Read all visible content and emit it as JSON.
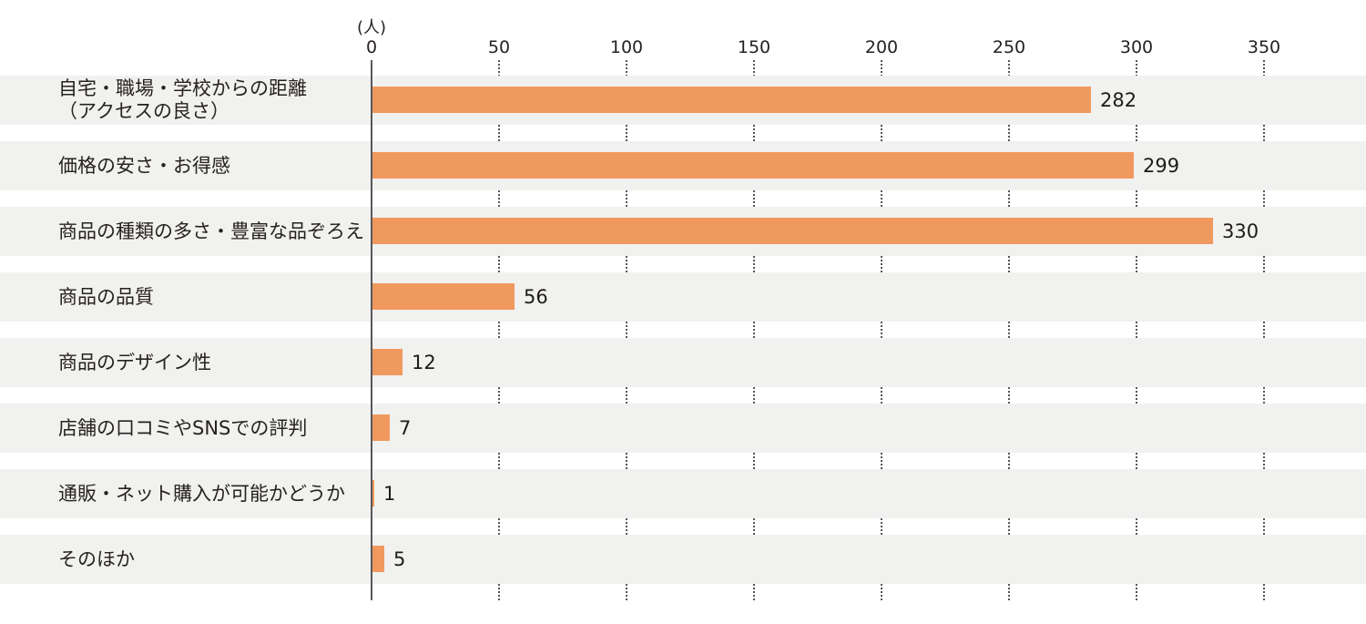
{
  "chart_data": {
    "type": "bar",
    "orientation": "horizontal",
    "title": "",
    "unit_label": "(人)",
    "categories": [
      "自宅・職場・学校からの距離（アクセスの良さ）",
      "価格の安さ・お得感",
      "商品の種類の多さ・豊富な品ぞろえ",
      "商品の品質",
      "商品のデザイン性",
      "店舗の口コミやSNSでの評判",
      "通販・ネット購入が可能かどうか",
      "そのほか"
    ],
    "category_label_lines": [
      [
        "自宅・職場・学校からの距離",
        "（アクセスの良さ）"
      ],
      [
        "価格の安さ・お得感"
      ],
      [
        "商品の種類の多さ・豊富な品ぞろえ"
      ],
      [
        "商品の品質"
      ],
      [
        "商品のデザイン性"
      ],
      [
        "店舗の口コミやSNSでの評判"
      ],
      [
        "通販・ネット購入が可能かどうか"
      ],
      [
        "そのほか"
      ]
    ],
    "values": [
      282,
      299,
      330,
      56,
      12,
      7,
      1,
      5
    ],
    "value_labels": [
      "282",
      "299",
      "330",
      "56",
      "12",
      "7",
      "1",
      "5"
    ],
    "x_ticks": [
      0,
      50,
      100,
      150,
      200,
      250,
      300,
      350
    ],
    "xlim": [
      0,
      390
    ],
    "ylabel": "",
    "xlabel": "",
    "legend": "none",
    "grid": "dotted vertical tick marks in the white gaps between row bands",
    "colors": {
      "bar": "#F0995E",
      "row_band": "#F1F1F0",
      "axis_line": "#58585A",
      "tick_dots": "#565656",
      "text": "#262220"
    }
  }
}
